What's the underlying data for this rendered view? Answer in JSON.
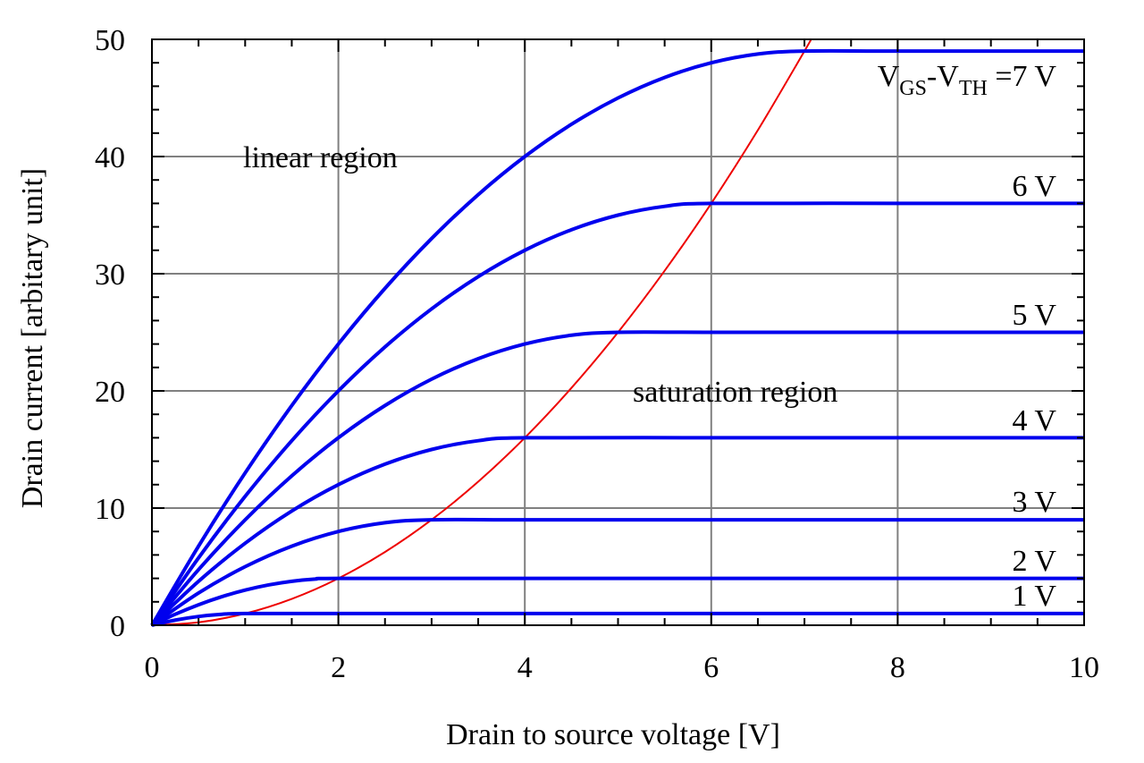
{
  "chart_data": {
    "type": "line",
    "title": "",
    "xlabel": "Drain to source voltage [V]",
    "ylabel": "Drain current [arbitary unit]",
    "xlim": [
      0,
      10
    ],
    "ylim": [
      0,
      50
    ],
    "xticks": [
      0,
      2,
      4,
      6,
      8,
      10
    ],
    "xtick_labels": [
      "0",
      "2",
      "4",
      "6",
      "8",
      "10"
    ],
    "yticks": [
      0,
      10,
      20,
      30,
      40,
      50
    ],
    "ytick_labels": [
      "0",
      "10",
      "20",
      "30",
      "40",
      "50"
    ],
    "grid": true,
    "colors": {
      "series": "#0000ee",
      "boundary": "#ee0000",
      "grid": "#808080"
    },
    "curve_label_vgs": "V",
    "curve_label_gs": "GS",
    "curve_label_dash": "-V",
    "curve_label_th": "TH",
    "curve_label_tail": " =7 V",
    "series": [
      {
        "vov": 1,
        "label": "1 V",
        "x": [
          0,
          0.25,
          0.5,
          0.75,
          1,
          2,
          4,
          6,
          8,
          10
        ],
        "y": [
          0,
          0.4375,
          0.75,
          0.9375,
          1,
          1,
          1,
          1,
          1,
          1
        ]
      },
      {
        "vov": 2,
        "label": "2 V",
        "x": [
          0,
          0.25,
          0.5,
          0.75,
          1,
          1.25,
          1.5,
          1.75,
          2,
          4,
          6,
          8,
          10
        ],
        "y": [
          0,
          0.9375,
          1.75,
          2.4375,
          3,
          3.4375,
          3.75,
          3.9375,
          4,
          4,
          4,
          4,
          4
        ]
      },
      {
        "vov": 3,
        "label": "3 V",
        "x": [
          0,
          0.5,
          1,
          1.5,
          2,
          2.5,
          3,
          4,
          6,
          8,
          10
        ],
        "y": [
          0,
          2.75,
          5,
          6.75,
          8,
          8.75,
          9,
          9,
          9,
          9,
          9
        ]
      },
      {
        "vov": 4,
        "label": "4 V",
        "x": [
          0,
          0.5,
          1,
          1.5,
          2,
          2.5,
          3,
          3.5,
          4,
          6,
          8,
          10
        ],
        "y": [
          0,
          3.75,
          7,
          9.75,
          12,
          13.75,
          15,
          15.75,
          16,
          16,
          16,
          16
        ]
      },
      {
        "vov": 5,
        "label": "5 V",
        "x": [
          0,
          0.5,
          1,
          1.5,
          2,
          2.5,
          3,
          3.5,
          4,
          4.5,
          5,
          6,
          8,
          10
        ],
        "y": [
          0,
          4.75,
          9,
          12.75,
          16,
          18.75,
          21,
          22.75,
          24,
          24.75,
          25,
          25,
          25,
          25
        ]
      },
      {
        "vov": 6,
        "label": "6 V",
        "x": [
          0,
          0.5,
          1,
          1.5,
          2,
          2.5,
          3,
          3.5,
          4,
          4.5,
          5,
          5.5,
          6,
          8,
          10
        ],
        "y": [
          0,
          5.75,
          11,
          15.75,
          20,
          23.75,
          27,
          29.75,
          32,
          33.75,
          35,
          35.75,
          36,
          36,
          36
        ]
      },
      {
        "vov": 7,
        "label": "7 V",
        "x": [
          0,
          0.5,
          1,
          1.5,
          2,
          2.5,
          3,
          3.5,
          4,
          4.5,
          5,
          5.5,
          6,
          6.5,
          7,
          8,
          10
        ],
        "y": [
          0,
          6.75,
          13,
          18.75,
          24,
          28.75,
          33,
          36.75,
          40,
          42.75,
          45,
          46.75,
          48,
          48.75,
          49,
          49,
          49
        ]
      }
    ],
    "boundary": {
      "name": "saturation boundary",
      "x": [
        0,
        0.5,
        1,
        1.5,
        2,
        2.5,
        3,
        3.5,
        4,
        4.5,
        5,
        5.5,
        6,
        6.5,
        7,
        7.07
      ],
      "y": [
        0,
        0.25,
        1,
        2.25,
        4,
        6.25,
        9,
        12.25,
        16,
        20.25,
        25,
        30.25,
        36,
        42.25,
        49,
        50
      ]
    },
    "annotations": [
      {
        "text": "linear region",
        "x": 1.0,
        "y": 40
      },
      {
        "text": "saturation region",
        "x": 5.2,
        "y": 20
      }
    ]
  }
}
